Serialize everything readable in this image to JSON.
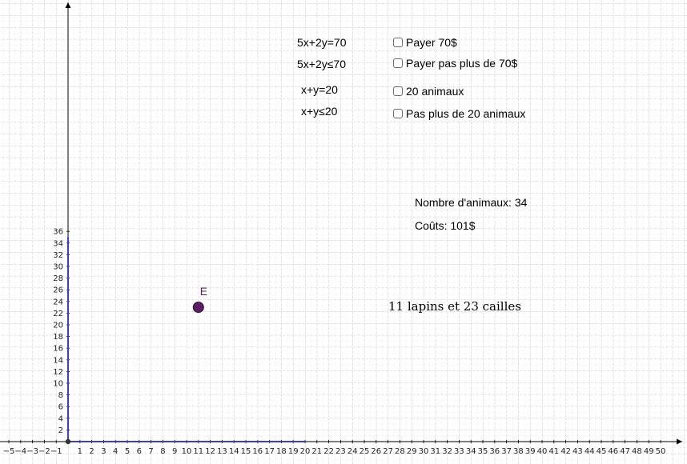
{
  "graph": {
    "x_range": [
      -5,
      50
    ],
    "y_range": [
      0,
      36
    ],
    "axis_color": "#000000",
    "segment_color": "#3b3bd6",
    "grid_color": "#c8c8c8",
    "point": {
      "label": "E",
      "x": 11,
      "y": 23,
      "color": "#5c1f63"
    }
  },
  "equations": [
    {
      "text": "5x+2y=70"
    },
    {
      "text": "5x+2y≤70"
    },
    {
      "text": "x+y=20"
    },
    {
      "text": "x+y≤20"
    }
  ],
  "checkboxes": [
    {
      "label": "Payer 70$",
      "checked": false
    },
    {
      "label": "Payer pas plus de 70$",
      "checked": false
    },
    {
      "label": "20 animaux",
      "checked": false
    },
    {
      "label": "Pas plus de 20 animaux",
      "checked": false
    }
  ],
  "info": {
    "animals": "Nombre d'animaux: 34",
    "cost": "Coûts: 101$"
  },
  "result": "11 lapins et 23 cailles"
}
